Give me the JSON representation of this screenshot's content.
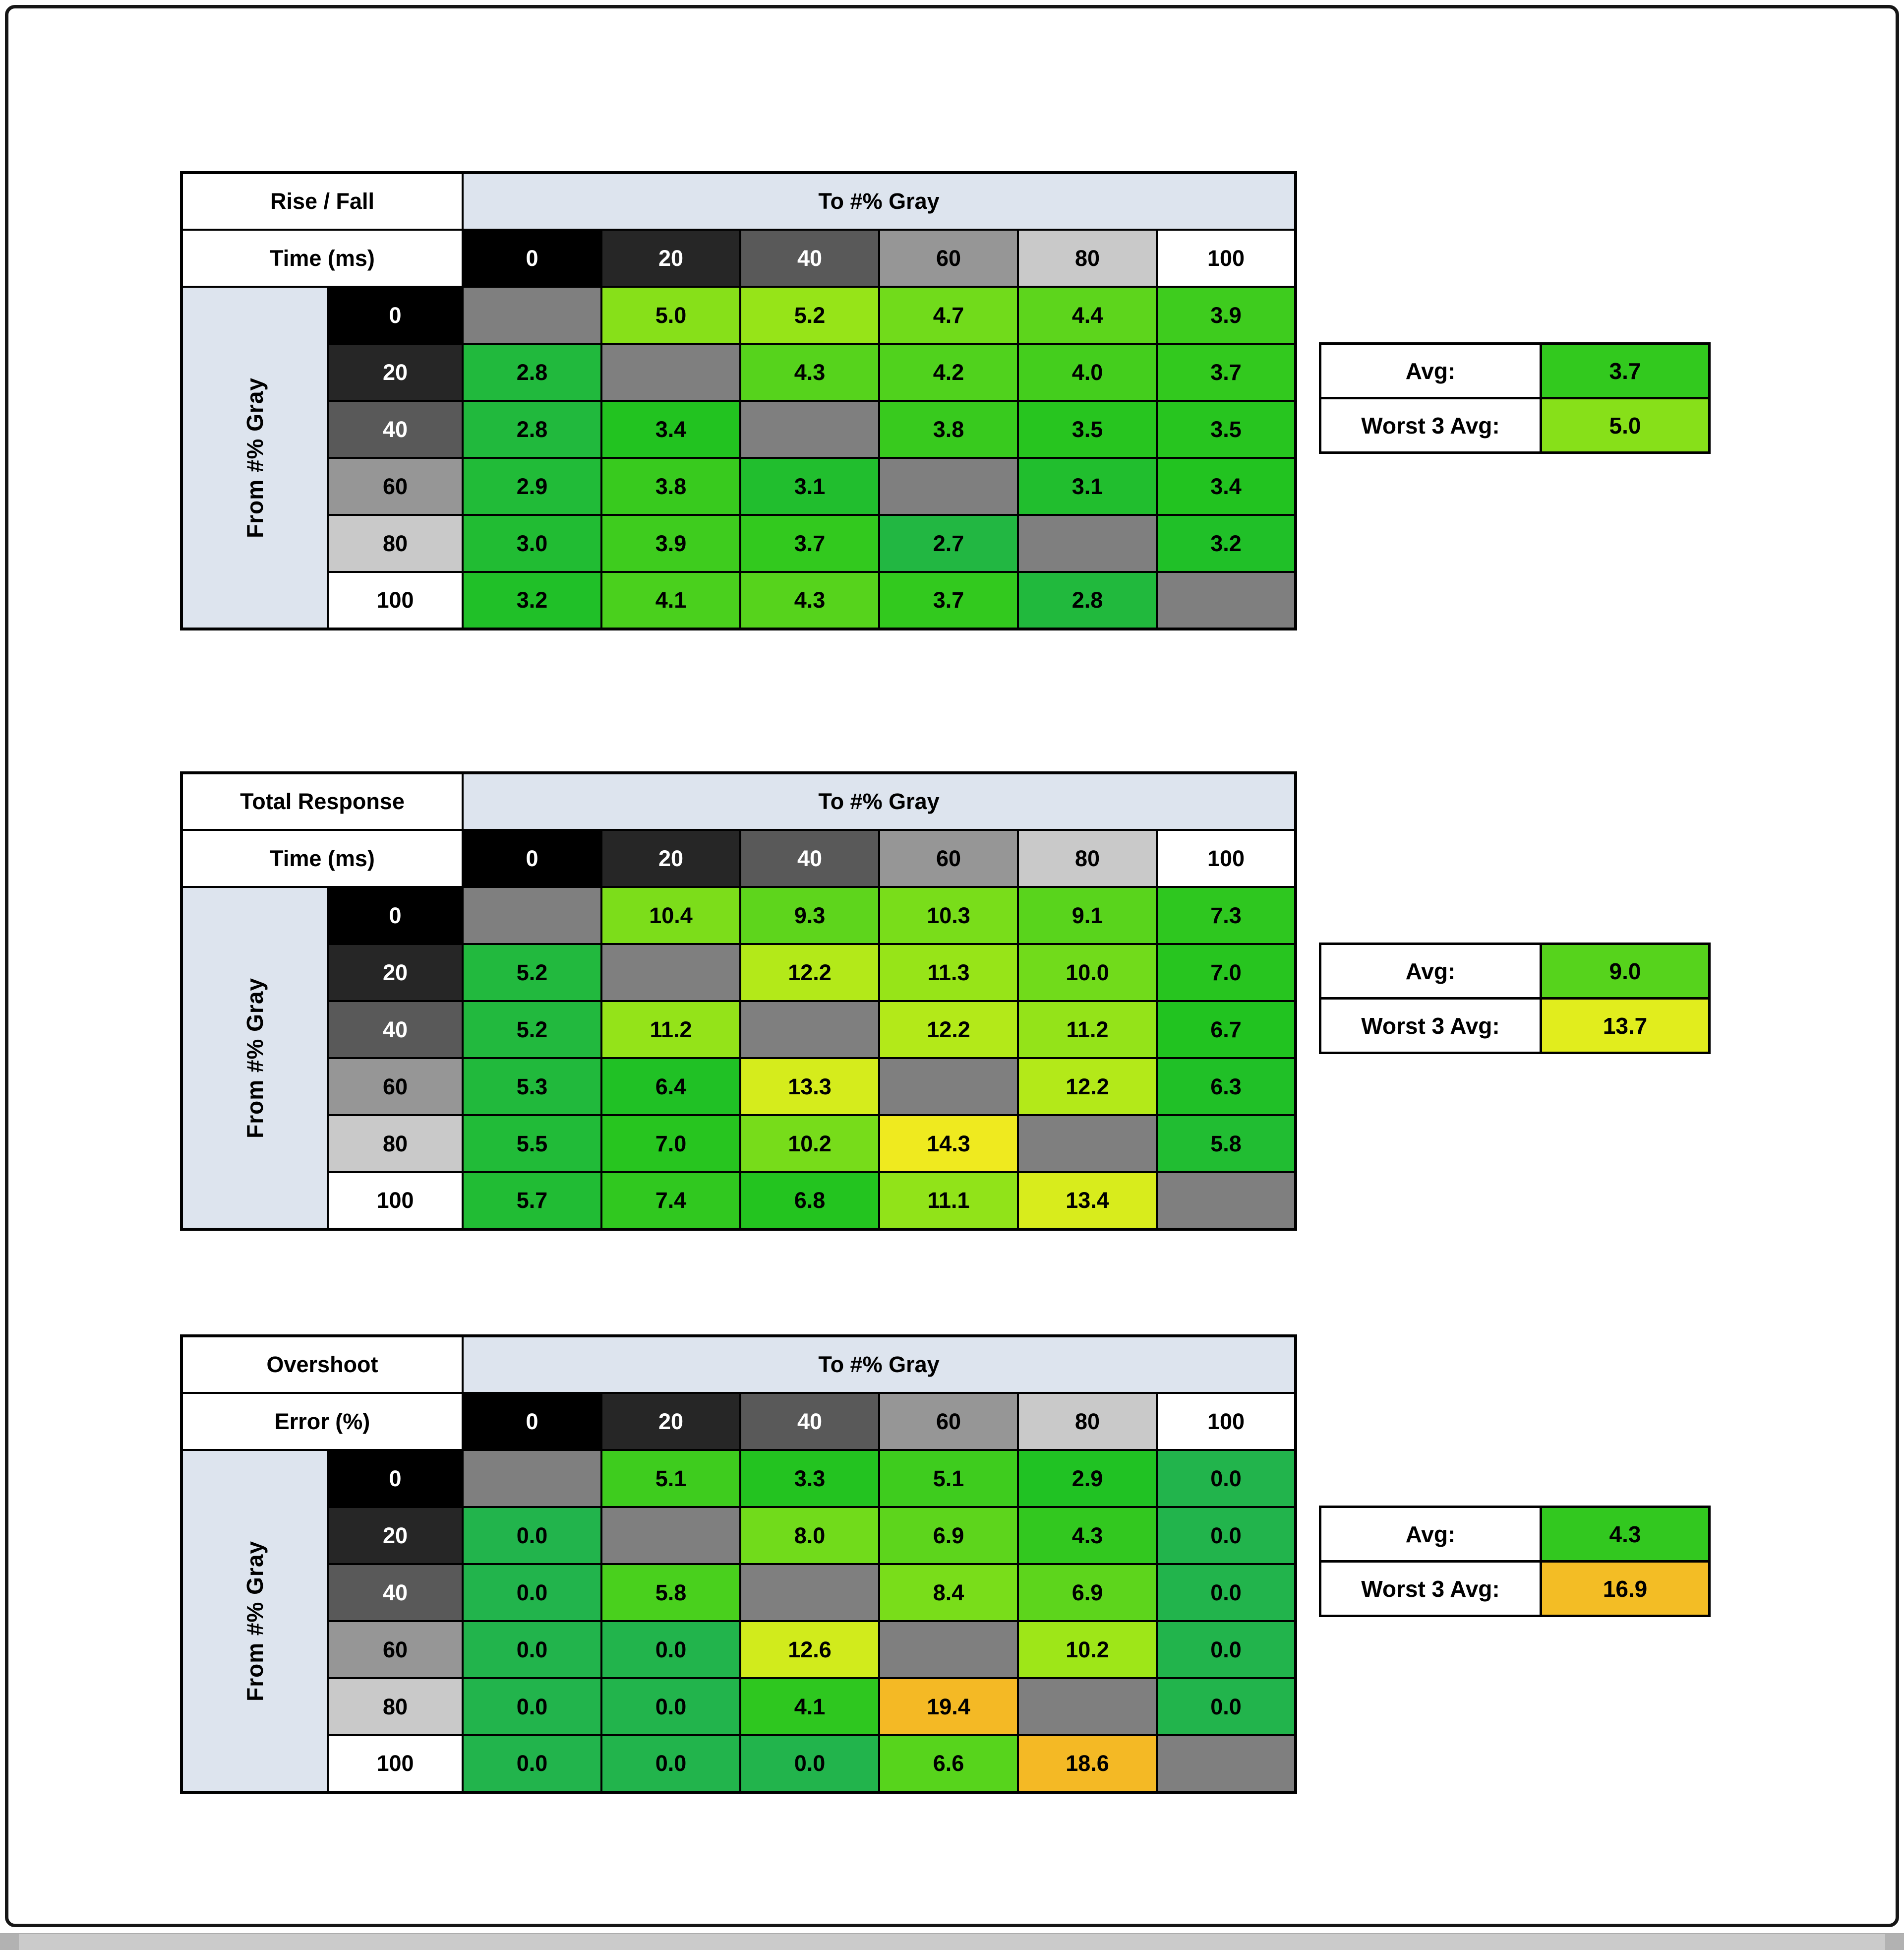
{
  "window": {
    "background": "#ffffff",
    "frame_border_color": "#161616",
    "bottom_bar_color": "#cbcbcb"
  },
  "labels": {
    "to_axis": "To #% Gray",
    "from_axis": "From #% Gray",
    "avg": "Avg:",
    "worst3": "Worst 3 Avg:"
  },
  "gray_levels": [
    "0",
    "20",
    "40",
    "60",
    "80",
    "100"
  ],
  "colors": {
    "header_band": "#dde4ee",
    "diagonal_cell": "#7f7f7f",
    "grid_line": "#000000",
    "level_bg": [
      "#000000",
      "#262626",
      "#595959",
      "#969696",
      "#c9c9c9",
      "#ffffff"
    ],
    "level_text": [
      "#ffffff",
      "#ffffff",
      "#ffffff",
      "#000000",
      "#000000",
      "#000000"
    ],
    "scale_green": "#22b44b",
    "scale_yellow_green": "#8cc63f",
    "scale_yellow": "#d8d41f",
    "scale_amber": "#f4b925"
  },
  "chart_data": [
    {
      "type": "heatmap",
      "title": "Rise / Fall Time (ms)",
      "title_line1": "Rise / Fall",
      "title_line2": "Time (ms)",
      "xlabel": "To #% Gray",
      "ylabel": "From #% Gray",
      "categories": [
        "0",
        "20",
        "40",
        "60",
        "80",
        "100"
      ],
      "rows": [
        [
          null,
          5.0,
          5.2,
          4.7,
          4.4,
          3.9
        ],
        [
          2.8,
          null,
          4.3,
          4.2,
          4.0,
          3.7
        ],
        [
          2.8,
          3.4,
          null,
          3.8,
          3.5,
          3.5
        ],
        [
          2.9,
          3.8,
          3.1,
          null,
          3.1,
          3.4
        ],
        [
          3.0,
          3.9,
          3.7,
          2.7,
          null,
          3.2
        ],
        [
          3.2,
          4.1,
          4.3,
          3.7,
          2.8,
          null
        ]
      ],
      "avg": 3.7,
      "worst3avg": 5.0,
      "color_map": {
        "v0": 2.5,
        "k": 20
      }
    },
    {
      "type": "heatmap",
      "title": "Total Response Time (ms)",
      "title_line1": "Total Response",
      "title_line2": "Time (ms)",
      "xlabel": "To #% Gray",
      "ylabel": "From #% Gray",
      "categories": [
        "0",
        "20",
        "40",
        "60",
        "80",
        "100"
      ],
      "rows": [
        [
          null,
          10.4,
          9.3,
          10.3,
          9.1,
          7.3
        ],
        [
          5.2,
          null,
          12.2,
          11.3,
          10.0,
          7.0
        ],
        [
          5.2,
          11.2,
          null,
          12.2,
          11.2,
          6.7
        ],
        [
          5.3,
          6.4,
          13.3,
          null,
          12.2,
          6.3
        ],
        [
          5.5,
          7.0,
          10.2,
          14.3,
          null,
          5.8
        ],
        [
          5.7,
          7.4,
          6.8,
          11.1,
          13.4,
          null
        ]
      ],
      "avg": 9.0,
      "worst3avg": 13.7,
      "color_map": {
        "v0": 4.5,
        "k": 8
      }
    },
    {
      "type": "heatmap",
      "title": "Overshoot Error (%)",
      "title_line1": "Overshoot",
      "title_line2": "Error (%)",
      "xlabel": "To #% Gray",
      "ylabel": "From #% Gray",
      "categories": [
        "0",
        "20",
        "40",
        "60",
        "80",
        "100"
      ],
      "rows": [
        [
          null,
          5.1,
          3.3,
          5.1,
          2.9,
          0.0
        ],
        [
          0.0,
          null,
          8.0,
          6.9,
          4.3,
          0.0
        ],
        [
          0.0,
          5.8,
          null,
          8.4,
          6.9,
          0.0
        ],
        [
          0.0,
          0.0,
          12.6,
          null,
          10.2,
          0.0
        ],
        [
          0.0,
          0.0,
          4.1,
          19.4,
          null,
          0.0
        ],
        [
          0.0,
          0.0,
          0.0,
          6.6,
          18.6,
          null
        ]
      ],
      "avg": 4.3,
      "worst3avg": 16.9,
      "color_map": {
        "v0": 0,
        "k": 5.5
      }
    }
  ]
}
